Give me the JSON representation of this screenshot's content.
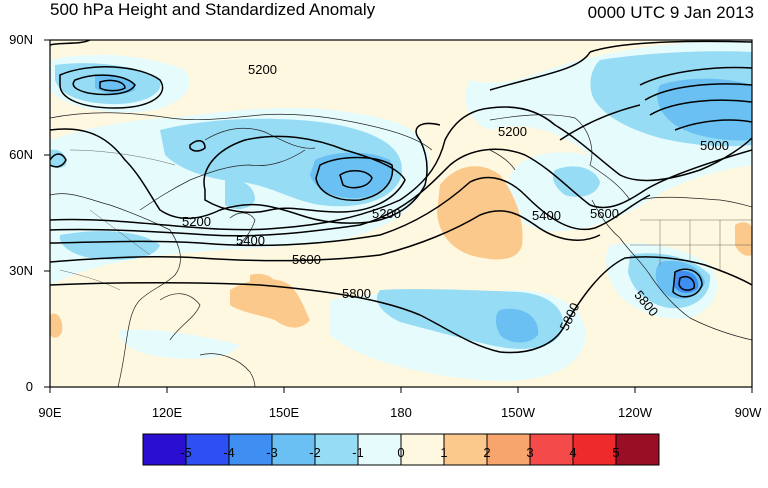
{
  "title": "500 hPa Height and Standardized Anomaly",
  "time_label": "0000 UTC 9 Jan 2013",
  "lat_labels": [
    "90N",
    "60N",
    "30N",
    "0"
  ],
  "lon_labels": [
    "90E",
    "120E",
    "150E",
    "180",
    "150W",
    "120W",
    "90W"
  ],
  "contour_labels": [
    "5200",
    "5200",
    "5200",
    "5200",
    "5000",
    "5400",
    "5400",
    "5600",
    "5600",
    "5800",
    "5800",
    "5800"
  ],
  "colorbar": {
    "ticks": [
      "-5",
      "-4",
      "-3",
      "-2",
      "-1",
      "0",
      "1",
      "2",
      "3",
      "4",
      "5"
    ],
    "colors": [
      "#2b0fd1",
      "#2e4ff2",
      "#3f8ef1",
      "#6ac0f2",
      "#97dcf5",
      "#e6fbfc",
      "#fff8e0",
      "#fbc98b",
      "#f8a46d",
      "#f44a4a",
      "#ef2a2a",
      "#9a0e25"
    ]
  }
}
